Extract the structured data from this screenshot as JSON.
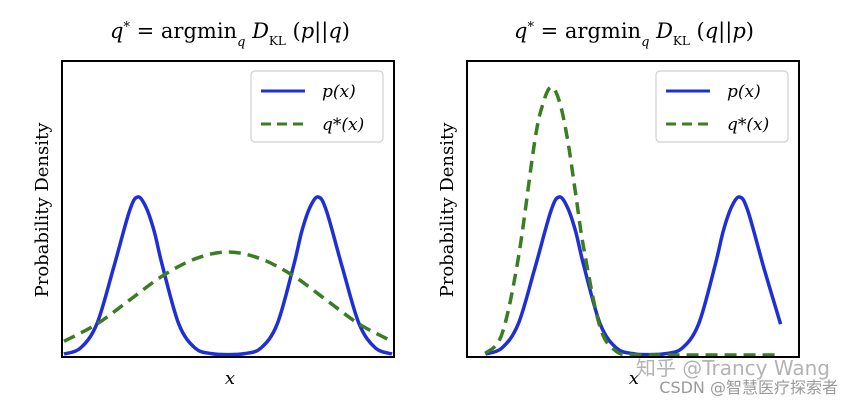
{
  "chart_data": [
    {
      "type": "line",
      "title": "q* = argmin_q D_KL(p||q)",
      "xlabel": "x",
      "ylabel": "Probability Density",
      "legend": "top-right",
      "grid": false,
      "xlim": [
        -5,
        5
      ],
      "ylim": [
        0,
        0.85
      ],
      "series": [
        {
          "name": "p(x)",
          "color": "#1f2fd8",
          "style": "solid",
          "x": [
            -5,
            -4.5,
            -4,
            -3.5,
            -3,
            -2.75,
            -2.5,
            -2.25,
            -2,
            -1.5,
            -1,
            -0.5,
            0,
            0.5,
            1,
            1.5,
            2,
            2.25,
            2.5,
            2.75,
            3,
            3.5,
            4,
            4.5,
            5
          ],
          "y": [
            0.003,
            0.02,
            0.09,
            0.25,
            0.42,
            0.46,
            0.43,
            0.36,
            0.26,
            0.09,
            0.02,
            0.004,
            0.001,
            0.004,
            0.02,
            0.09,
            0.26,
            0.36,
            0.43,
            0.46,
            0.42,
            0.25,
            0.09,
            0.02,
            0.003
          ]
        },
        {
          "name": "q*(x)",
          "color": "#3a7d22",
          "style": "dashed",
          "x": [
            -5,
            -4,
            -3,
            -2,
            -1,
            0,
            1,
            2,
            3,
            4,
            5
          ],
          "y": [
            0.04,
            0.09,
            0.16,
            0.23,
            0.28,
            0.3,
            0.28,
            0.23,
            0.16,
            0.09,
            0.04
          ]
        }
      ]
    },
    {
      "type": "line",
      "title": "q* = argmin_q D_KL(q||p)",
      "xlabel": "x",
      "ylabel": "Probability Density",
      "legend": "top-right",
      "grid": false,
      "xlim": [
        -3.5,
        6.5
      ],
      "ylim": [
        0,
        0.85
      ],
      "series": [
        {
          "name": "p(x)",
          "color": "#1f2fd8",
          "style": "solid",
          "x": [
            -3,
            -2.5,
            -2,
            -1.5,
            -1,
            -0.75,
            -0.5,
            -0.25,
            0,
            0.5,
            1,
            1.5,
            2,
            2.5,
            3,
            3.5,
            4,
            4.25,
            4.5,
            4.75,
            5,
            5.5,
            6
          ],
          "y": [
            0.003,
            0.02,
            0.09,
            0.25,
            0.42,
            0.46,
            0.43,
            0.36,
            0.26,
            0.09,
            0.02,
            0.004,
            0.001,
            0.004,
            0.02,
            0.09,
            0.26,
            0.36,
            0.43,
            0.46,
            0.42,
            0.25,
            0.09
          ]
        },
        {
          "name": "q*(x)",
          "color": "#3a7d22",
          "style": "dashed",
          "x": [
            -3,
            -2.5,
            -2,
            -1.5,
            -1.25,
            -1,
            -0.75,
            -0.5,
            -0.25,
            0,
            0.5,
            1,
            1.5,
            2,
            2.5,
            3,
            3.5,
            4,
            4.5,
            5,
            5.5,
            6
          ],
          "y": [
            0.005,
            0.06,
            0.28,
            0.62,
            0.73,
            0.78,
            0.74,
            0.63,
            0.47,
            0.31,
            0.08,
            0.01,
            0.001,
            0,
            0,
            0,
            0,
            0,
            0,
            0,
            0,
            0
          ]
        }
      ]
    }
  ],
  "watermark": {
    "line1": "知乎 @Trancy Wang",
    "line2": "CSDN @智慧医疗探索者"
  }
}
